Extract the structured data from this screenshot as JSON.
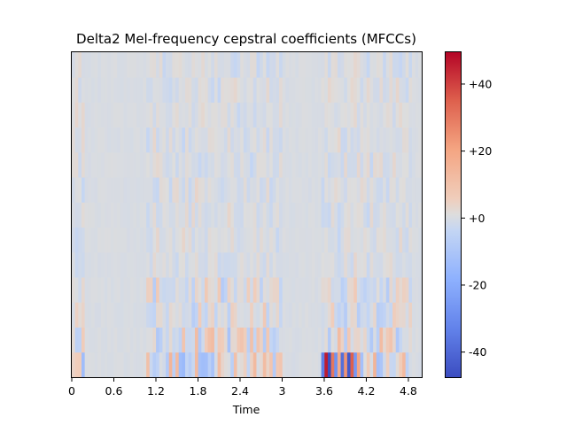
{
  "chart_data": {
    "type": "heatmap",
    "title": "Delta2 Mel-frequency cepstral coefficients (MFCCs)",
    "xlabel": "Time",
    "ylabel": "",
    "xlim": [
      0,
      4.99
    ],
    "x_ticks": [
      0,
      0.6,
      1.2,
      1.8,
      2.4,
      3,
      3.6,
      4.2,
      4.8
    ],
    "x_tick_labels": [
      "0",
      "0.6",
      "1.2",
      "1.8",
      "2.4",
      "3",
      "3.6",
      "4.2",
      "4.8"
    ],
    "n_coefficients": 13,
    "n_frames": 108,
    "colormap": "coolwarm",
    "clim": [
      -47.5,
      49.5
    ],
    "colorbar_ticks": [
      40,
      20,
      0,
      -20,
      -40
    ],
    "colorbar_tick_labels": [
      "+40",
      "+20",
      "+0",
      "-20",
      "-40"
    ],
    "grid": false,
    "active_segments_seconds": [
      [
        0.0,
        0.18
      ],
      [
        1.05,
        2.98
      ],
      [
        3.55,
        4.85
      ]
    ],
    "bottom_row_peak_frames": [
      {
        "frame": 77,
        "value": -34
      },
      {
        "frame": 78,
        "value": 46
      },
      {
        "frame": 79,
        "value": -47
      },
      {
        "frame": 80,
        "value": 30
      },
      {
        "frame": 81,
        "value": -28
      },
      {
        "frame": 82,
        "value": 18
      },
      {
        "frame": 83,
        "value": -38
      },
      {
        "frame": 84,
        "value": 24
      },
      {
        "frame": 85,
        "value": -44
      },
      {
        "frame": 86,
        "value": 35
      },
      {
        "frame": 87,
        "value": -26
      },
      {
        "frame": 88,
        "value": 20
      }
    ]
  }
}
